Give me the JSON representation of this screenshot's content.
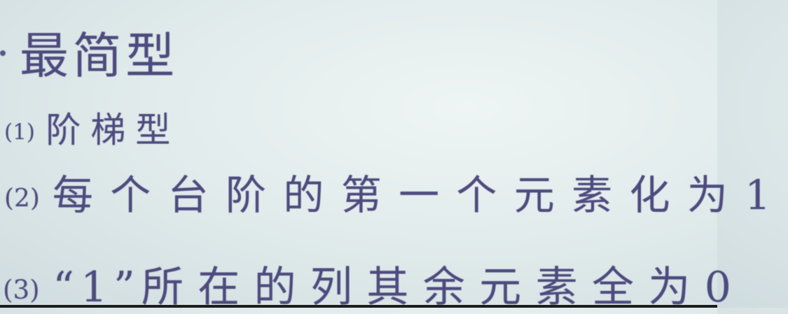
{
  "board": {
    "heading": "最简型",
    "items": [
      {
        "number": "(1)",
        "text": "阶梯型"
      },
      {
        "number": "(2)",
        "text": "每个台阶的第一个元素化为1"
      },
      {
        "number": "(3)",
        "quote": "“1”",
        "text": "所在的列其余元素全为0"
      }
    ]
  },
  "colors": {
    "ink": "#4d4b7e",
    "board": "#e2ecec",
    "edge": "#1d1d1d"
  }
}
